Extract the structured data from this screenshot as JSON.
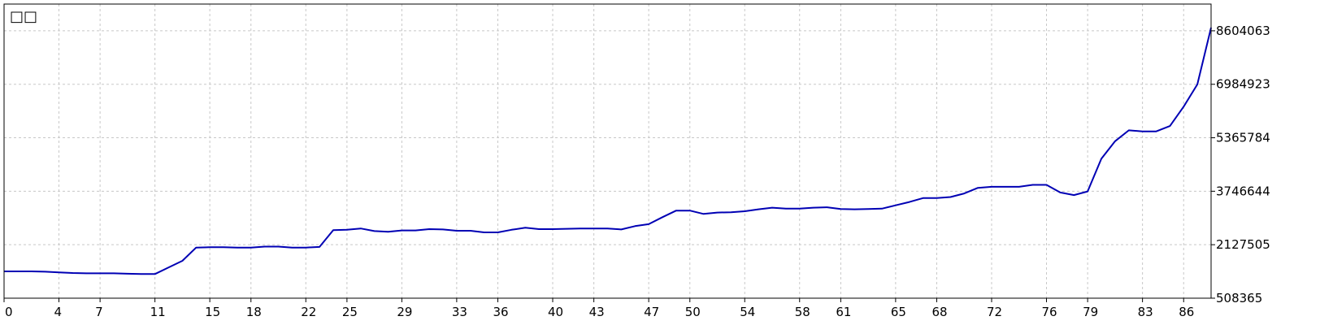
{
  "corner_label": "□□",
  "chart_data": {
    "type": "line",
    "title": "",
    "xlabel": "",
    "ylabel": "",
    "xlim": [
      0,
      88
    ],
    "ylim": [
      508365,
      9413633
    ],
    "x_ticks": [
      0,
      4,
      7,
      11,
      15,
      18,
      22,
      25,
      29,
      33,
      36,
      40,
      43,
      47,
      50,
      54,
      58,
      61,
      65,
      68,
      72,
      76,
      79,
      83,
      86
    ],
    "y_ticks": [
      508365,
      2127505,
      3746644,
      5365784,
      6984923,
      8604063
    ],
    "grid": true,
    "axis_position": "right-bottom",
    "colors": {
      "line": "#0000B4",
      "grid": "#C8C8C8",
      "axis": "#000000",
      "background": "#FFFFFF"
    },
    "series": [
      {
        "x": [
          0,
          1,
          2,
          3,
          4,
          5,
          6,
          7,
          8,
          9,
          10,
          11,
          12,
          13,
          14,
          15,
          16,
          17,
          18,
          19,
          20,
          21,
          22,
          23,
          24,
          25,
          26,
          27,
          28,
          29,
          30,
          31,
          32,
          33,
          34,
          35,
          36,
          37,
          38,
          39,
          40,
          41,
          42,
          43,
          44,
          45,
          46,
          47,
          48,
          49,
          50,
          51,
          52,
          53,
          54,
          55,
          56,
          57,
          58,
          59,
          60,
          61,
          62,
          63,
          64,
          65,
          66,
          67,
          68,
          69,
          70,
          71,
          72,
          73,
          74,
          75,
          76,
          77,
          78,
          79,
          80,
          81,
          82,
          83,
          84,
          85,
          86,
          87,
          88
        ],
        "values": [
          1320000,
          1320000,
          1320000,
          1310000,
          1290000,
          1270000,
          1260000,
          1260000,
          1260000,
          1250000,
          1240000,
          1240000,
          1440000,
          1640000,
          2040000,
          2050000,
          2050000,
          2040000,
          2040000,
          2070000,
          2070000,
          2040000,
          2040000,
          2060000,
          2570000,
          2580000,
          2620000,
          2540000,
          2520000,
          2560000,
          2560000,
          2600000,
          2590000,
          2550000,
          2550000,
          2500000,
          2500000,
          2580000,
          2640000,
          2600000,
          2600000,
          2610000,
          2620000,
          2620000,
          2620000,
          2590000,
          2690000,
          2750000,
          2960000,
          3160000,
          3160000,
          3060000,
          3100000,
          3110000,
          3140000,
          3200000,
          3250000,
          3220000,
          3220000,
          3250000,
          3260000,
          3210000,
          3200000,
          3210000,
          3220000,
          3320000,
          3420000,
          3540000,
          3540000,
          3570000,
          3680000,
          3850000,
          3880000,
          3880000,
          3880000,
          3940000,
          3940000,
          3710000,
          3630000,
          3740000,
          4730000,
          5260000,
          5590000,
          5560000,
          5560000,
          5720000,
          6310000,
          6980000,
          8700000
        ]
      }
    ]
  }
}
